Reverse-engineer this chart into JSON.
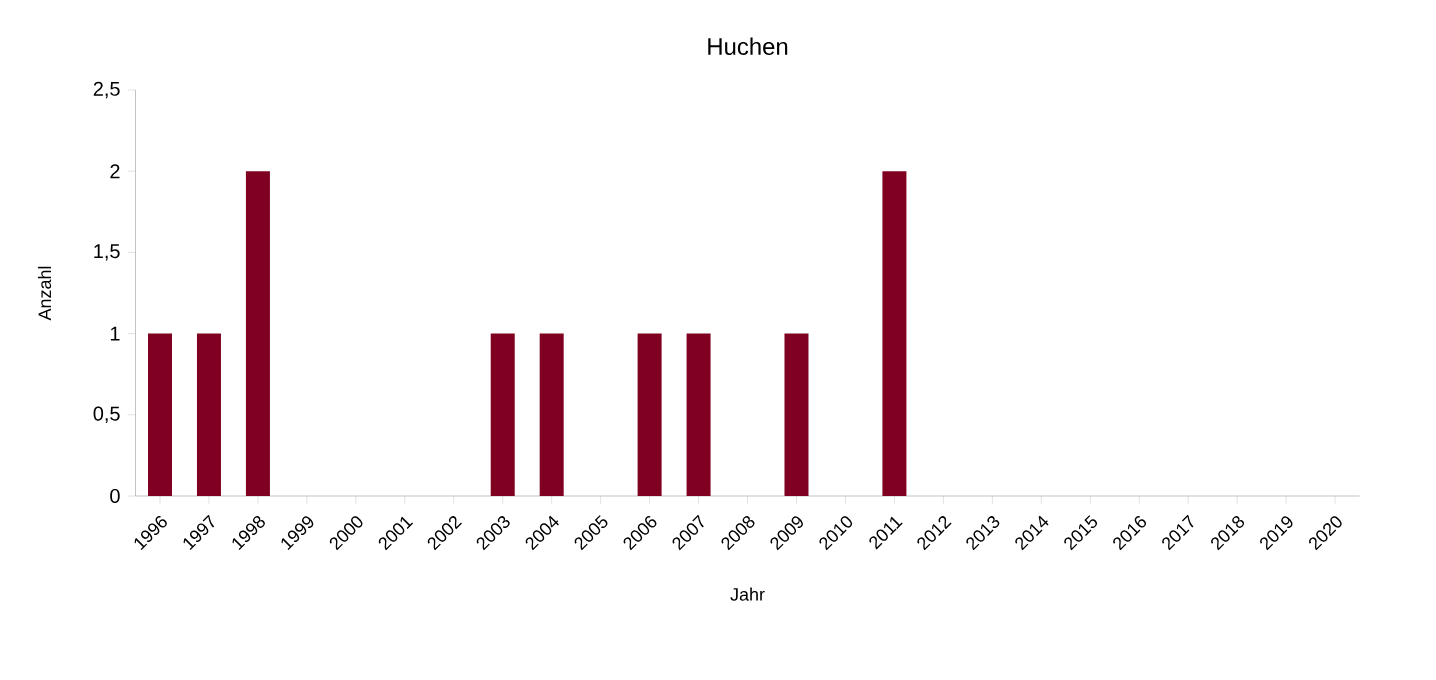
{
  "chart_data": {
    "type": "bar",
    "title": "Huchen",
    "xlabel": "Jahr",
    "ylabel": "Anzahl",
    "categories": [
      "1996",
      "1997",
      "1998",
      "1999",
      "2000",
      "2001",
      "2002",
      "2003",
      "2004",
      "2005",
      "2006",
      "2007",
      "2008",
      "2009",
      "2010",
      "2011",
      "2012",
      "2013",
      "2014",
      "2015",
      "2016",
      "2017",
      "2018",
      "2019",
      "2020"
    ],
    "values": [
      1,
      1,
      2,
      0,
      0,
      0,
      0,
      1,
      1,
      0,
      1,
      1,
      0,
      1,
      0,
      2,
      0,
      0,
      0,
      0,
      0,
      0,
      0,
      0,
      0
    ],
    "color": "#7f0020",
    "ylim": [
      0,
      2.5
    ],
    "yticks": [
      0,
      {
        "value": 0.5,
        "label": "0,5"
      },
      1,
      {
        "value": 1.5,
        "label": "1,5"
      },
      2,
      {
        "value": 2.5,
        "label": "2,5"
      }
    ]
  }
}
